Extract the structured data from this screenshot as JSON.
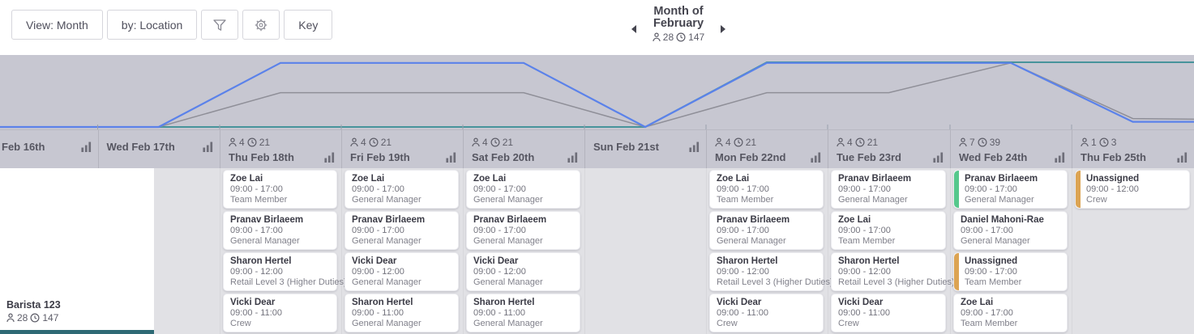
{
  "toolbar": {
    "view_label": "View: Month",
    "by_label": "by: Location",
    "key_label": "Key"
  },
  "period": {
    "line1": "Month of",
    "line2": "February",
    "people": "28",
    "hours": "147"
  },
  "location": {
    "name": "Barista 123",
    "people": "28",
    "hours": "147"
  },
  "days": [
    {
      "label": "Feb 16th",
      "stats": null,
      "shifts": []
    },
    {
      "label": "Wed Feb 17th",
      "stats": null,
      "shifts": []
    },
    {
      "label": "Thu Feb 18th",
      "stats": {
        "people": "4",
        "hours": "21"
      },
      "shifts": [
        {
          "name": "Zoe Lai",
          "time": "09:00 - 17:00",
          "role": "Team Member",
          "bar": null
        },
        {
          "name": "Pranav Birlaeem",
          "time": "09:00 - 17:00",
          "role": "General Manager",
          "bar": null
        },
        {
          "name": "Sharon Hertel",
          "time": "09:00 - 12:00",
          "role": "Retail Level 3 (Higher Duties)",
          "bar": null
        },
        {
          "name": "Vicki Dear",
          "time": "09:00 - 11:00",
          "role": "Crew",
          "bar": null
        }
      ]
    },
    {
      "label": "Fri Feb 19th",
      "stats": {
        "people": "4",
        "hours": "21"
      },
      "shifts": [
        {
          "name": "Zoe Lai",
          "time": "09:00 - 17:00",
          "role": "General Manager",
          "bar": null
        },
        {
          "name": "Pranav Birlaeem",
          "time": "09:00 - 17:00",
          "role": "General Manager",
          "bar": null
        },
        {
          "name": "Vicki Dear",
          "time": "09:00 - 12:00",
          "role": "General Manager",
          "bar": null
        },
        {
          "name": "Sharon Hertel",
          "time": "09:00 - 11:00",
          "role": "General Manager",
          "bar": null
        }
      ]
    },
    {
      "label": "Sat Feb 20th",
      "stats": {
        "people": "4",
        "hours": "21"
      },
      "shifts": [
        {
          "name": "Zoe Lai",
          "time": "09:00 - 17:00",
          "role": "General Manager",
          "bar": null
        },
        {
          "name": "Pranav Birlaeem",
          "time": "09:00 - 17:00",
          "role": "General Manager",
          "bar": null
        },
        {
          "name": "Vicki Dear",
          "time": "09:00 - 12:00",
          "role": "General Manager",
          "bar": null
        },
        {
          "name": "Sharon Hertel",
          "time": "09:00 - 11:00",
          "role": "General Manager",
          "bar": null
        }
      ]
    },
    {
      "label": "Sun Feb 21st",
      "stats": null,
      "shifts": []
    },
    {
      "label": "Mon Feb 22nd",
      "stats": {
        "people": "4",
        "hours": "21"
      },
      "shifts": [
        {
          "name": "Zoe Lai",
          "time": "09:00 - 17:00",
          "role": "Team Member",
          "bar": null
        },
        {
          "name": "Pranav Birlaeem",
          "time": "09:00 - 17:00",
          "role": "General Manager",
          "bar": null
        },
        {
          "name": "Sharon Hertel",
          "time": "09:00 - 12:00",
          "role": "Retail Level 3 (Higher Duties)",
          "bar": null
        },
        {
          "name": "Vicki Dear",
          "time": "09:00 - 11:00",
          "role": "Crew",
          "bar": null
        }
      ]
    },
    {
      "label": "Tue Feb 23rd",
      "stats": {
        "people": "4",
        "hours": "21"
      },
      "shifts": [
        {
          "name": "Pranav Birlaeem",
          "time": "09:00 - 17:00",
          "role": "General Manager",
          "bar": null
        },
        {
          "name": "Zoe Lai",
          "time": "09:00 - 17:00",
          "role": "Team Member",
          "bar": null
        },
        {
          "name": "Sharon Hertel",
          "time": "09:00 - 12:00",
          "role": "Retail Level 3 (Higher Duties)",
          "bar": null
        },
        {
          "name": "Vicki Dear",
          "time": "09:00 - 11:00",
          "role": "Crew",
          "bar": null
        }
      ]
    },
    {
      "label": "Wed Feb 24th",
      "stats": {
        "people": "7",
        "hours": "39"
      },
      "shifts": [
        {
          "name": "Pranav Birlaeem",
          "time": "09:00 - 17:00",
          "role": "General Manager",
          "bar": "green"
        },
        {
          "name": "Daniel Mahoni-Rae",
          "time": "09:00 - 17:00",
          "role": "General Manager",
          "bar": null
        },
        {
          "name": "Unassigned",
          "time": "09:00 - 17:00",
          "role": "Team Member",
          "bar": "orange"
        },
        {
          "name": "Zoe Lai",
          "time": "09:00 - 17:00",
          "role": "Team Member",
          "bar": null
        }
      ]
    },
    {
      "label": "Thu Feb 25th",
      "stats": {
        "people": "1",
        "hours": "3"
      },
      "shifts": [
        {
          "name": "Unassigned",
          "time": "09:00 - 12:00",
          "role": "Crew",
          "bar": "orange"
        }
      ]
    }
  ],
  "chart_data": {
    "type": "line",
    "categories": [
      "Feb 16th",
      "Wed Feb 17th",
      "Thu Feb 18th",
      "Fri Feb 19th",
      "Sat Feb 20th",
      "Sun Feb 21st",
      "Mon Feb 22nd",
      "Tue Feb 23rd",
      "Wed Feb 24th",
      "Thu Feb 25th"
    ],
    "series": [
      {
        "name": "coverage-line",
        "color": "#47949b",
        "levels": [
          0,
          0,
          0,
          0,
          0,
          0,
          1,
          1,
          1,
          1
        ],
        "tail_level": 1
      },
      {
        "name": "hours-line",
        "color": "#8f8f98",
        "values": [
          0,
          0,
          21,
          21,
          21,
          0,
          21,
          21,
          39,
          3
        ],
        "levels": [
          0,
          0,
          0.53,
          0.53,
          0.53,
          0,
          0.53,
          0.53,
          0.99,
          0.13
        ],
        "tail_level": 0.12
      },
      {
        "name": "staff-line",
        "color": "#5b82ea",
        "values": [
          0,
          0,
          4,
          4,
          4,
          0,
          4,
          4,
          7,
          1
        ],
        "levels": [
          0,
          0,
          0.99,
          0.99,
          0.99,
          0,
          0.99,
          0.99,
          0.99,
          0.08
        ],
        "tail_level": 0.08
      }
    ],
    "legend": false,
    "grid": false
  },
  "colors": {
    "band_bg": "#c7c7d1",
    "body_bg": "#e1e1e5",
    "green_bar": "#56c88c",
    "orange_bar": "#dca453",
    "row_accent": "#2e6a75",
    "blue_line": "#5b82ea",
    "gray_line": "#8f8f98",
    "teal_line": "#47949b",
    "tick": "#9aa0ad"
  }
}
